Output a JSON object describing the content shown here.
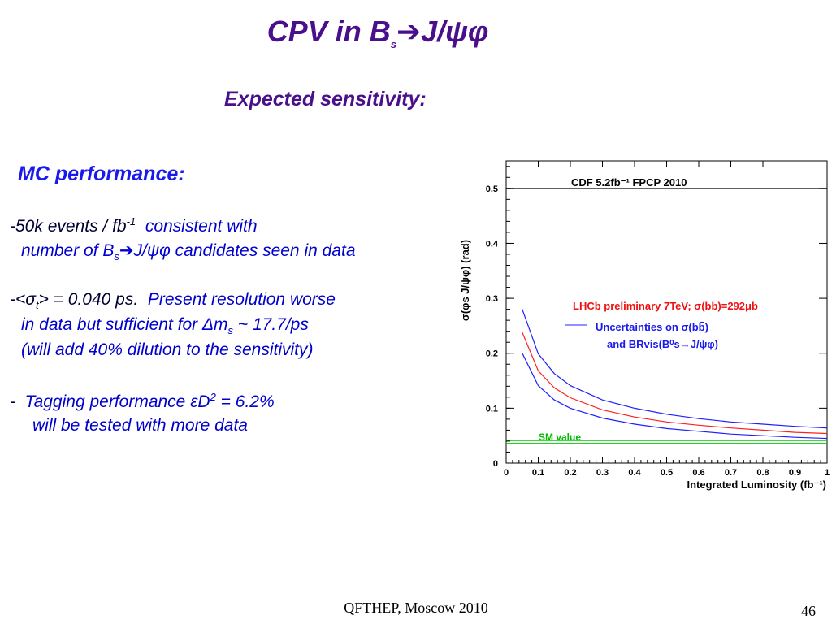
{
  "slide": {
    "title_main": "CPV in B",
    "title_sub": "s",
    "title_arrow": "➔",
    "title_tail": "J/ψφ",
    "subtitle": "Expected sensitivity:",
    "mc_heading": "MC performance:",
    "bullets": {
      "b1_dash": "-",
      "b1_a": "50k events / fb",
      "b1_sup": "-1",
      "b1_b": "consistent with",
      "b1_line2_a": "number of  B",
      "b1_line2_sub": "s",
      "b1_line2_arrow": "➔",
      "b1_line2_b": "J/ψφ  candidates seen in data",
      "b2_dash": "-",
      "b2_a": "<σ",
      "b2_sub": "t",
      "b2_b": "> = 0.040 ps.",
      "b2_c": "Present resolution worse",
      "b2_line2_a": "in data but sufficient  for Δm",
      "b2_line2_sub": "s",
      "b2_line2_b": " ~ 17.7/ps",
      "b2_line3": "(will add 40% dilution to the sensitivity)",
      "b3_dash": "-",
      "b3_a": "Tagging performance εD",
      "b3_sup": "2",
      "b3_b": " = 6.2%",
      "b3_line2": "will be tested with more data"
    },
    "footer": "QFTHEP, Moscow 2010",
    "page_number": "46"
  },
  "chart_data": {
    "type": "line",
    "ylabel": "σ(φs J/ψφ)  (rad)",
    "xlabel": "Integrated Luminosity (fb⁻¹)",
    "xlim": [
      0,
      1
    ],
    "ylim": [
      0,
      0.55
    ],
    "x_ticks": [
      "0",
      "0.1",
      "0.2",
      "0.3",
      "0.4",
      "0.5",
      "0.6",
      "0.7",
      "0.8",
      "0.9",
      "1"
    ],
    "y_ticks": [
      "0",
      "0.1",
      "0.2",
      "0.3",
      "0.4",
      "0.5"
    ],
    "annotations": {
      "cdf": "CDF 5.2fb⁻¹  FPCP 2010",
      "lhcb": "LHCb preliminary 7TeV;  σ(bb̄)=292μb",
      "unc_line1": "Uncertainties on  σ(bb̄)",
      "unc_line2": "and BRvis(B⁰s→J/ψφ)",
      "sm": "SM value"
    },
    "reference_lines": [
      {
        "value": 0.5,
        "color": "#000000"
      },
      {
        "value": 0.036,
        "color": "#00cc00"
      },
      {
        "value": 0.041,
        "color": "#00cc00"
      }
    ],
    "series": [
      {
        "color": "#2020ff",
        "x": [
          0.05,
          0.1,
          0.15,
          0.2,
          0.3,
          0.4,
          0.5,
          0.6,
          0.7,
          0.8,
          0.9,
          1.0
        ],
        "values": [
          0.28,
          0.199,
          0.163,
          0.141,
          0.115,
          0.1,
          0.089,
          0.081,
          0.075,
          0.071,
          0.067,
          0.064
        ]
      },
      {
        "color": "#ff2020",
        "x": [
          0.05,
          0.1,
          0.15,
          0.2,
          0.3,
          0.4,
          0.5,
          0.6,
          0.7,
          0.8,
          0.9,
          1.0
        ],
        "values": [
          0.238,
          0.168,
          0.137,
          0.119,
          0.097,
          0.084,
          0.075,
          0.069,
          0.064,
          0.06,
          0.056,
          0.054
        ]
      },
      {
        "color": "#2020ff",
        "x": [
          0.05,
          0.1,
          0.15,
          0.2,
          0.3,
          0.4,
          0.5,
          0.6,
          0.7,
          0.8,
          0.9,
          1.0
        ],
        "values": [
          0.2,
          0.141,
          0.115,
          0.1,
          0.082,
          0.071,
          0.063,
          0.058,
          0.053,
          0.05,
          0.047,
          0.045
        ]
      }
    ],
    "legend_sample_color": "#2020ff",
    "colors": {
      "lhcb_text": "#ee1111",
      "unc_text": "#1a1aee",
      "sm_text": "#00bb00"
    }
  }
}
